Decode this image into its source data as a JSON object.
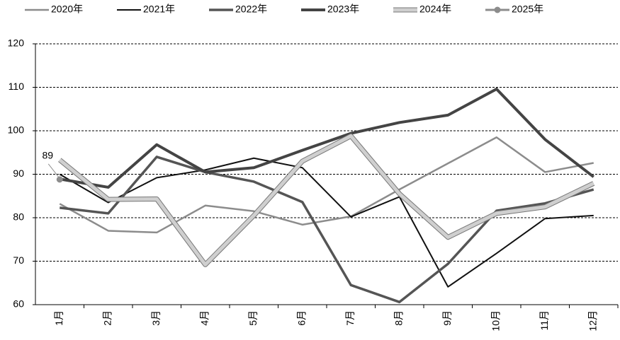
{
  "chart_data": {
    "type": "line",
    "categories": [
      "1月",
      "2月",
      "3月",
      "4月",
      "5月",
      "6月",
      "7月",
      "8月",
      "9月",
      "10月",
      "11月",
      "12月"
    ],
    "series": [
      {
        "name": "2020年",
        "color": "#8c8c8c",
        "values": [
          83.2,
          77,
          76.6,
          82.8,
          81.5,
          78.4,
          80.3,
          86.5,
          92.5,
          98.5,
          90.5,
          92.6
        ]
      },
      {
        "name": "2021年",
        "color": "#111111",
        "values": [
          90,
          83.5,
          89.2,
          91,
          93.7,
          91.5,
          80.2,
          84.8,
          64.1,
          71.8,
          79.8,
          80.5
        ]
      },
      {
        "name": "2022年",
        "color": "#555555",
        "values": [
          82.3,
          81,
          94,
          90.5,
          88.3,
          83.6,
          64.5,
          60.6,
          69.4,
          81.6,
          83.3,
          86.5
        ]
      },
      {
        "name": "2023年",
        "color": "#444444",
        "values": [
          88.9,
          87,
          96.8,
          90.5,
          91.5,
          95.5,
          99.4,
          101.9,
          103.6,
          109.6,
          98,
          89.4
        ]
      },
      {
        "name": "2024年",
        "color": "#cfcfcf",
        "outline": "#777777",
        "values": [
          93.3,
          84.2,
          84.3,
          69.2,
          80.5,
          93,
          98.8,
          85.5,
          75.5,
          81,
          82.5,
          87.9
        ]
      },
      {
        "name": "2025年",
        "color": "#8c8c8c",
        "marker": "circle",
        "values": [
          88.8,
          null,
          null,
          null,
          null,
          null,
          null,
          null,
          null,
          null,
          null,
          null
        ],
        "value_labels": [
          "89",
          null,
          null,
          null,
          null,
          null,
          null,
          null,
          null,
          null,
          null,
          null
        ]
      }
    ],
    "ylim": [
      60,
      120
    ],
    "yticks": [
      60,
      70,
      80,
      90,
      100,
      110,
      120
    ],
    "grid": true,
    "legend": "top"
  }
}
